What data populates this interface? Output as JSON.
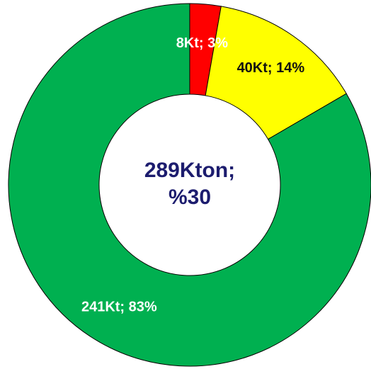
{
  "chart_data": {
    "type": "donut",
    "values": [
      8,
      40,
      241
    ],
    "value_labels": [
      "8Kt; 3%",
      "40Kt; 14%",
      "241Kt; 83%"
    ],
    "colors": [
      "#ff0000",
      "#ffff00",
      "#00b050"
    ],
    "label_colors": [
      "#ffffff",
      "#111111",
      "#ffffff"
    ],
    "center_text": [
      "289Kton;",
      "%30"
    ],
    "center_color": "#1c1c6e"
  }
}
